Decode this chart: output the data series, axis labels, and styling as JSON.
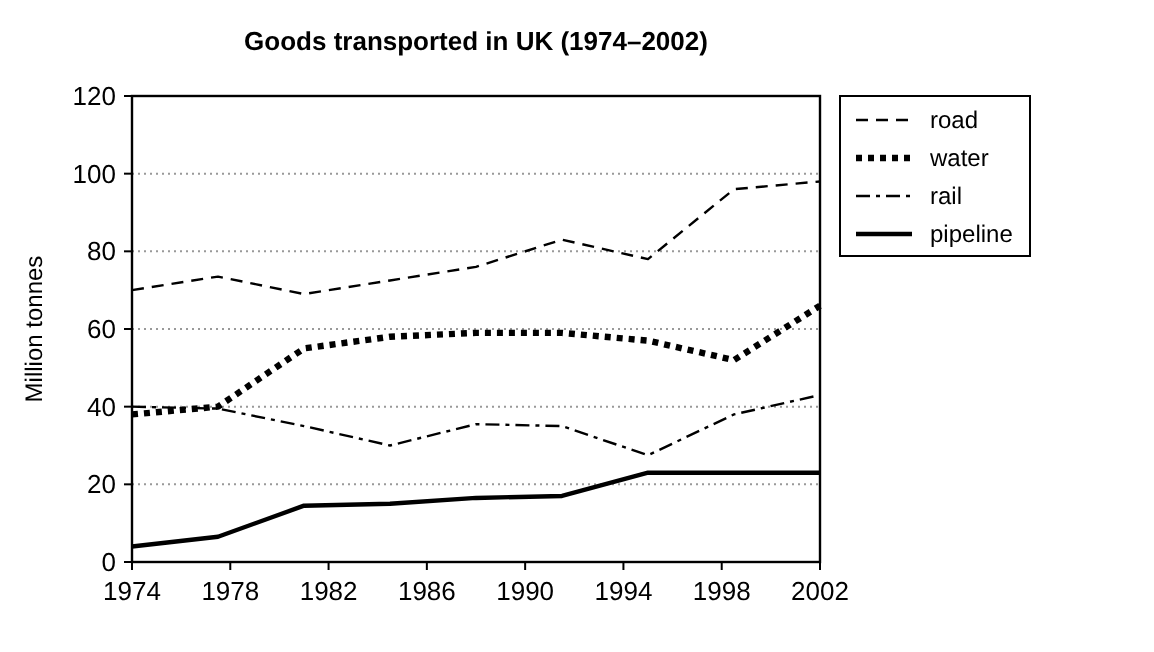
{
  "chart_data": {
    "type": "line",
    "title": "Goods transported in UK (1974–2002)",
    "ylabel": "Million tonnes",
    "xlim": [
      1974,
      2002
    ],
    "xticks": [
      1974,
      1978,
      1982,
      1986,
      1990,
      1994,
      1998,
      2002
    ],
    "ylim": [
      0,
      120
    ],
    "yticks": [
      0,
      20,
      40,
      60,
      80,
      100,
      120
    ],
    "grid": "y",
    "legend": "top right",
    "marker": "none",
    "x": [
      1974,
      1977.5,
      1981,
      1984.5,
      1988,
      1991.5,
      1995,
      1998.5,
      2002
    ],
    "series": [
      {
        "name": "road",
        "color": "#000000",
        "line_style": "dashed",
        "values": [
          70,
          73.5,
          69,
          72.5,
          76,
          83,
          78,
          96,
          98
        ]
      },
      {
        "name": "water",
        "color": "#000000",
        "line_style": "dotted",
        "values": [
          38,
          40,
          55,
          58,
          59,
          59,
          57,
          52,
          66
        ]
      },
      {
        "name": "rail",
        "color": "#000000",
        "line_style": "dashdot",
        "values": [
          40,
          39.5,
          35,
          30,
          35.5,
          35,
          27.5,
          38,
          43
        ]
      },
      {
        "name": "pipeline",
        "color": "#000000",
        "line_style": "solid",
        "values": [
          4,
          6.5,
          14.5,
          15,
          16.5,
          17,
          23,
          23,
          23
        ]
      }
    ]
  }
}
